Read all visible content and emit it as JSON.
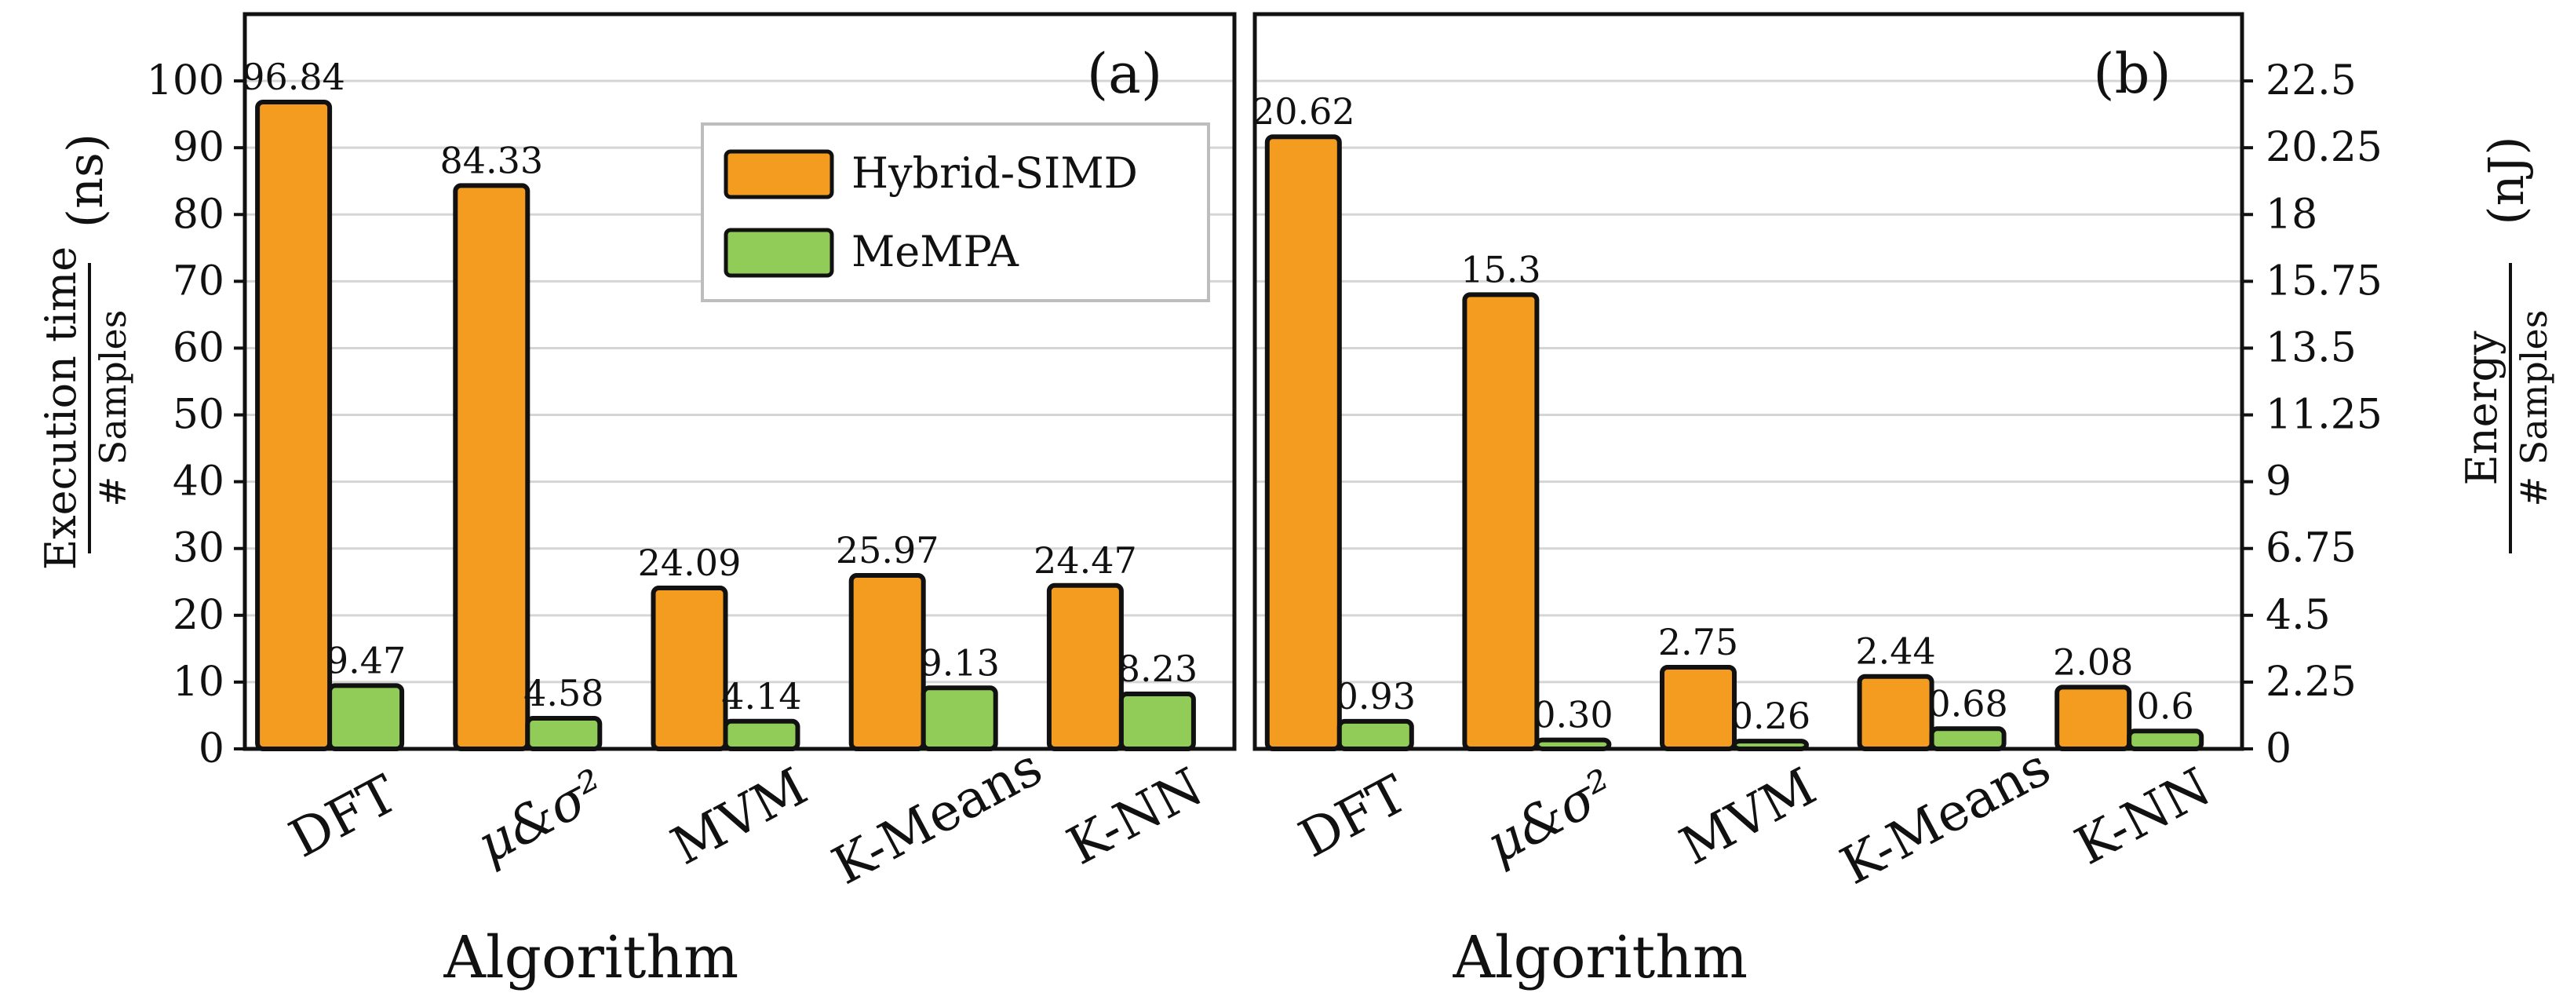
{
  "chart_data": [
    {
      "panel_label": "(a)",
      "type": "bar",
      "categories": [
        "DFT",
        "μ&σ²",
        "MVM",
        "K-Means",
        "K-NN"
      ],
      "series": [
        {
          "name": "Hybrid-SIMD",
          "values": [
            96.84,
            84.33,
            24.09,
            25.97,
            24.47
          ],
          "labels": [
            "96.84",
            "84.33",
            "24.09",
            "25.97",
            "24.47"
          ]
        },
        {
          "name": "MeMPA",
          "values": [
            9.47,
            4.58,
            4.14,
            9.13,
            8.23
          ],
          "labels": [
            "9.47",
            "4.58",
            "4.14",
            "9.13",
            "8.23"
          ]
        }
      ],
      "ylim": [
        0,
        110
      ],
      "yticks": [
        0,
        10,
        20,
        30,
        40,
        50,
        60,
        70,
        80,
        90,
        100
      ],
      "ytick_labels": [
        "0",
        "10",
        "20",
        "30",
        "40",
        "50",
        "60",
        "70",
        "80",
        "90",
        "100"
      ],
      "ylabel_numerator": "Execution time",
      "ylabel_denominator": "# Samples",
      "ylabel_unit": "(ns)",
      "xlabel": "Algorithm",
      "grid": true,
      "legend_position": "top-right"
    },
    {
      "panel_label": "(b)",
      "type": "bar",
      "categories": [
        "DFT",
        "μ&σ²",
        "MVM",
        "K-Means",
        "K-NN"
      ],
      "series": [
        {
          "name": "Hybrid-SIMD",
          "values": [
            20.62,
            15.3,
            2.75,
            2.44,
            2.08
          ],
          "labels": [
            "20.62",
            "15.3",
            "2.75",
            "2.44",
            "2.08"
          ]
        },
        {
          "name": "MeMPA",
          "values": [
            0.93,
            0.3,
            0.26,
            0.68,
            0.6
          ],
          "labels": [
            "0.93",
            "0.30",
            "0.26",
            "0.68",
            "0.6"
          ]
        }
      ],
      "ylim": [
        0,
        24.75
      ],
      "yticks": [
        0,
        2.25,
        4.5,
        6.75,
        9,
        11.25,
        13.5,
        15.75,
        18,
        20.25,
        22.5
      ],
      "ytick_labels": [
        "0",
        "2.25",
        "4.5",
        "6.75",
        "9",
        "11.25",
        "13.5",
        "15.75",
        "18",
        "20.25",
        "22.5"
      ],
      "ylabel_numerator": "Energy",
      "ylabel_denominator": "# Samples",
      "ylabel_unit": "(nJ)",
      "xlabel": "Algorithm",
      "grid": true,
      "legend_position": "none"
    }
  ],
  "colors": {
    "hybrid": "#F39C1F",
    "mempa": "#92CC58",
    "edge": "#111111",
    "grid": "#D5D5D5",
    "frame": "#111111"
  }
}
